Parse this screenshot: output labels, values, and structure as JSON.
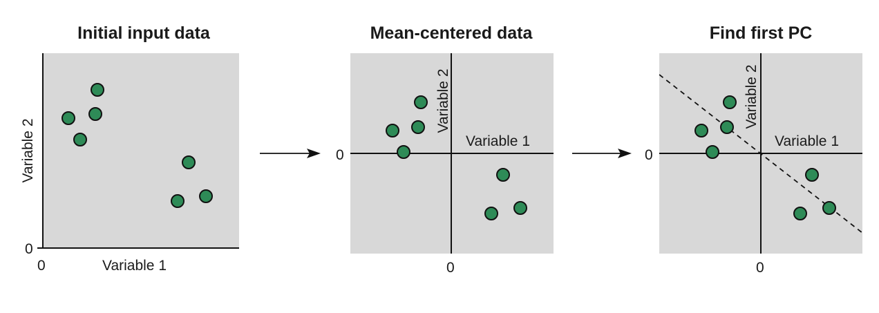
{
  "panels": [
    {
      "title": "Initial input data",
      "x_label": "Variable 1",
      "y_label": "Variable 2",
      "x_zero": "0",
      "y_zero": "0"
    },
    {
      "title": "Mean-centered data",
      "x_label": "Variable 1",
      "y_label": "Variable 2",
      "x_zero": "0",
      "y_zero": "0"
    },
    {
      "title": "Find first PC",
      "x_label": "Variable 1",
      "y_label": "Variable 2",
      "x_zero": "0",
      "y_zero": "0"
    }
  ],
  "point_color": "#2e8b57",
  "panel_background": "#d8d8d8"
}
